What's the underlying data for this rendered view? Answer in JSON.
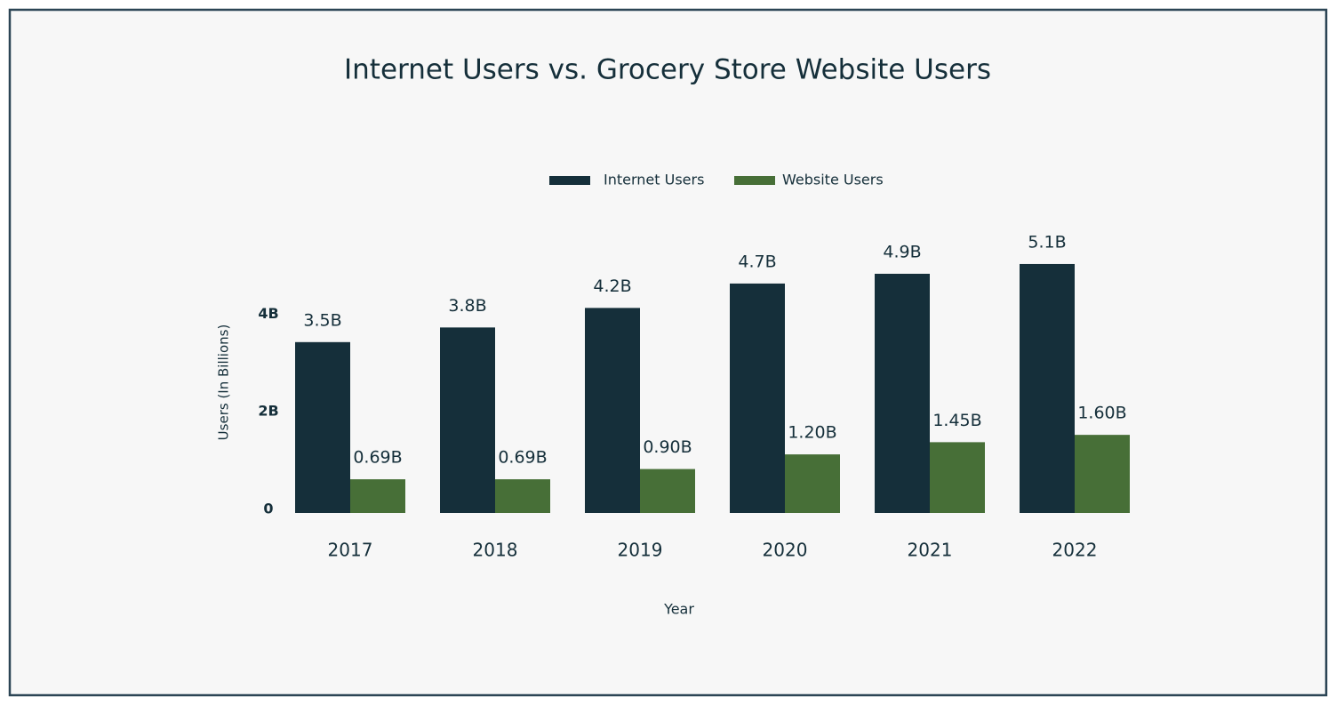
{
  "chart_data": {
    "type": "bar",
    "title": "Internet Users vs. Grocery Store Website Users",
    "x_label": "Year",
    "y_label": "Users (In Billions)",
    "categories": [
      "2017",
      "2018",
      "2019",
      "2020",
      "2021",
      "2022"
    ],
    "series": [
      {
        "name": "Internet Users",
        "color": "#152f3a",
        "values": [
          3.5,
          3.8,
          4.2,
          4.7,
          4.9,
          5.1
        ],
        "value_labels": [
          "3.5B",
          "3.8B",
          "4.2B",
          "4.7B",
          "4.9B",
          "5.1B"
        ]
      },
      {
        "name": "Website Users",
        "color": "#476f37",
        "values": [
          0.69,
          0.69,
          0.9,
          1.2,
          1.45,
          1.6
        ],
        "value_labels": [
          "0.69B",
          "0.69B",
          "0.90B",
          "1.20B",
          "1.45B",
          "1.60B"
        ]
      }
    ],
    "ylim": [
      0,
      5.5
    ],
    "yticks": [
      0,
      {
        "value": 2,
        "label": "2B"
      },
      {
        "value": 4,
        "label": "4B"
      }
    ],
    "grid": false,
    "legend": "top"
  }
}
